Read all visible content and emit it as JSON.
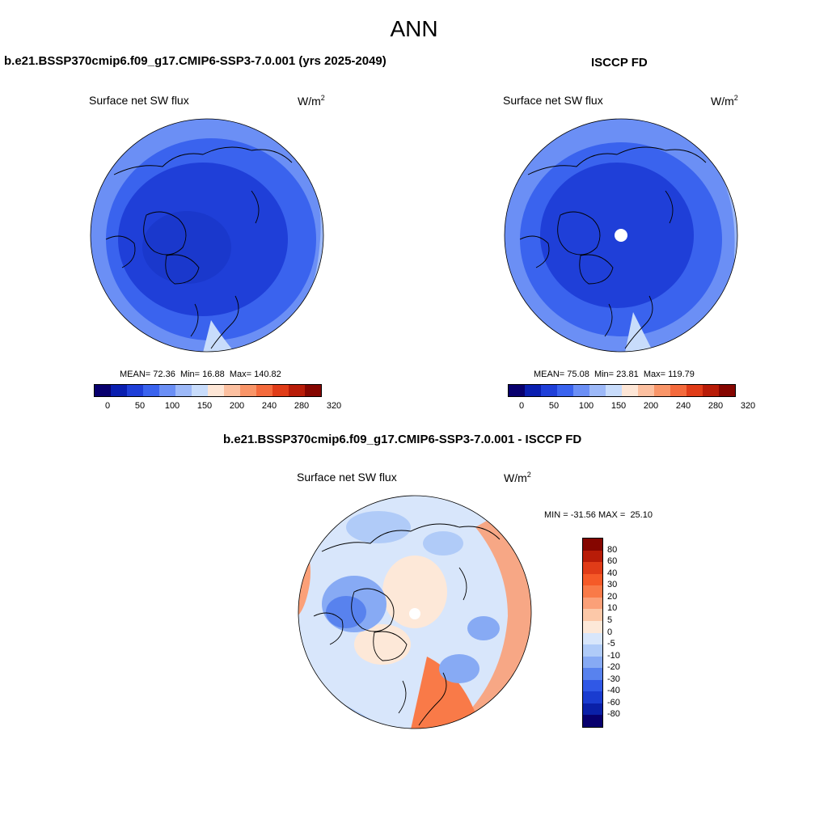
{
  "title": "ANN",
  "panels": [
    {
      "title": "b.e21.BSSP370cmip6.f09_g17.CMIP6-SSP3-7.0.001 (yrs 2025-2049)",
      "subtitle": "Surface net SW flux",
      "units": "W/m",
      "units_sup": "2",
      "mean_label": "MEAN=",
      "mean": "72.36",
      "min_label": "Min=",
      "min": "16.88",
      "max_label": "Max=",
      "max": "140.82"
    },
    {
      "title": "ISCCP FD",
      "subtitle": "Surface net SW flux",
      "units": "W/m",
      "units_sup": "2",
      "mean_label": "MEAN=",
      "mean": "75.08",
      "min_label": "Min=",
      "min": "23.81",
      "max_label": "Max=",
      "max": "119.79"
    },
    {
      "title": "b.e21.BSSP370cmip6.f09_g17.CMIP6-SSP3-7.0.001 - ISCCP FD",
      "subtitle": "Surface net SW flux",
      "units": "W/m",
      "units_sup": "2",
      "min_label": "MIN =",
      "min": "-31.56",
      "max_label": "MAX =",
      "max": "25.10"
    }
  ],
  "colorbar_main": {
    "colors": [
      "#08006e",
      "#0a1fb0",
      "#1f3fd8",
      "#3a63ee",
      "#6b8ff5",
      "#9db9f8",
      "#c8dcfb",
      "#fde6d6",
      "#fcc0a0",
      "#f99568",
      "#f46a3c",
      "#e03c18",
      "#b81c08",
      "#850600"
    ],
    "tick_labels": [
      "0",
      "50",
      "100",
      "150",
      "200",
      "240",
      "280",
      "320"
    ]
  },
  "colorbar_diff": {
    "colors_top_to_bottom": [
      "#850600",
      "#b81c08",
      "#e03c18",
      "#f55a28",
      "#f97a48",
      "#fba078",
      "#fcc8a8",
      "#fde8d8",
      "#d8e6fb",
      "#b0cbf8",
      "#87aaf4",
      "#5882ee",
      "#3058e6",
      "#1a3cd0",
      "#0a20a8",
      "#08006e"
    ],
    "tick_labels": [
      "80",
      "60",
      "40",
      "30",
      "20",
      "10",
      "5",
      "0",
      "-5",
      "-10",
      "-20",
      "-30",
      "-40",
      "-60",
      "-80"
    ]
  },
  "map_colors": {
    "deep_blue": "#1f3fd8",
    "mid_blue": "#3a63ee",
    "light_blue": "#6b8ff5",
    "pale_blue": "#c8dcfb",
    "peach": "#fcc0a0",
    "orange": "#f99568"
  }
}
